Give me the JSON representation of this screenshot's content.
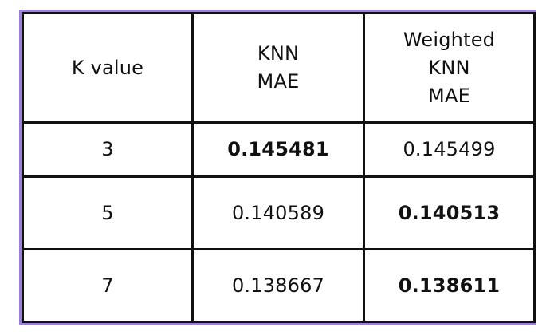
{
  "table": {
    "accent_color": "#9b7fe0",
    "headers": [
      "K value",
      "KNN\nMAE",
      "Weighted\nKNN\nMAE"
    ],
    "rows": [
      {
        "k": "3",
        "knn": "0.145481",
        "wknn": "0.145499",
        "best": "knn"
      },
      {
        "k": "5",
        "knn": "0.140589",
        "wknn": "0.140513",
        "best": "wknn"
      },
      {
        "k": "7",
        "knn": "0.138667",
        "wknn": "0.138611",
        "best": "wknn"
      }
    ]
  }
}
